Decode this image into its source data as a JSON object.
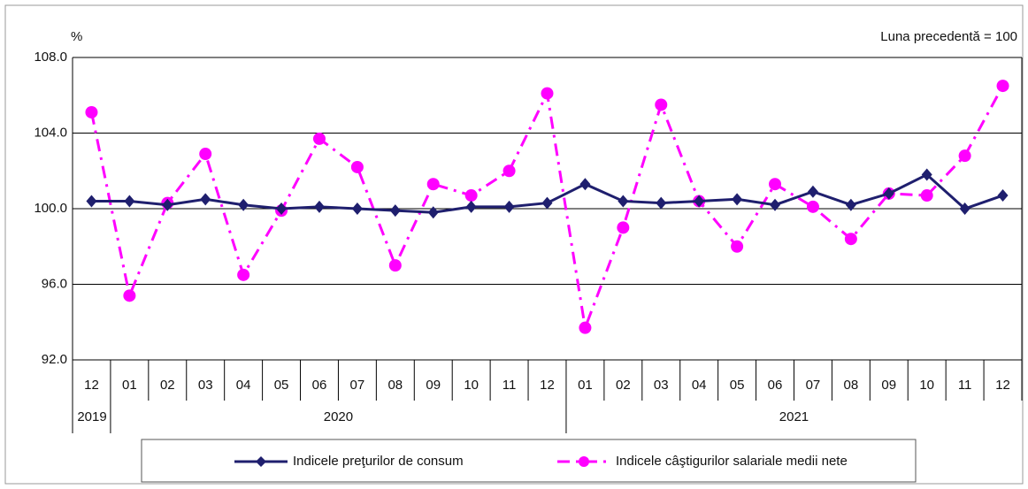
{
  "chart_data": {
    "type": "line",
    "unit_label": "%",
    "annotation": "Luna precedentă = 100",
    "categories": [
      "12",
      "01",
      "02",
      "03",
      "04",
      "05",
      "06",
      "07",
      "08",
      "09",
      "10",
      "11",
      "12",
      "01",
      "02",
      "03",
      "04",
      "05",
      "06",
      "07",
      "08",
      "09",
      "10",
      "11",
      "12"
    ],
    "groups": [
      {
        "label": "2019",
        "count": 1
      },
      {
        "label": "2020",
        "count": 12
      },
      {
        "label": "2021",
        "count": 12
      }
    ],
    "series": [
      {
        "name": "Indicele preţurilor de consum",
        "color": "#1f1f6e",
        "marker": "diamond",
        "values": [
          100.4,
          100.4,
          100.2,
          100.5,
          100.2,
          100.0,
          100.1,
          100.0,
          99.9,
          99.8,
          100.1,
          100.1,
          100.3,
          101.3,
          100.4,
          100.3,
          100.4,
          100.5,
          100.2,
          100.9,
          100.2,
          100.8,
          101.8,
          100.0,
          100.7
        ]
      },
      {
        "name": "Indicele câştigurilor salariale medii nete",
        "color": "#ff00ff",
        "marker": "circle",
        "dashed": true,
        "values": [
          105.1,
          95.4,
          100.3,
          102.9,
          96.5,
          99.9,
          103.7,
          102.2,
          97.0,
          101.3,
          100.7,
          102.0,
          106.1,
          93.7,
          99.0,
          105.5,
          100.4,
          98.0,
          101.3,
          100.1,
          98.4,
          100.8,
          100.7,
          102.8,
          106.5
        ]
      }
    ],
    "ylim": [
      92,
      108
    ],
    "yticks": [
      {
        "value": 92,
        "label": "92.0"
      },
      {
        "value": 96,
        "label": "96.0"
      },
      {
        "value": 100,
        "label": "100.0"
      },
      {
        "value": 104,
        "label": "104.0"
      },
      {
        "value": 108,
        "label": "108.0"
      }
    ],
    "grid": true
  }
}
